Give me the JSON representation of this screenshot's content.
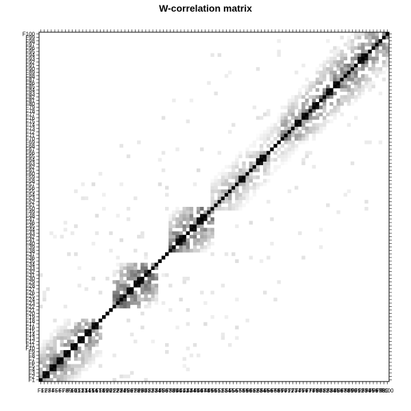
{
  "chart_data": {
    "type": "heatmap",
    "title": "W-correlation matrix",
    "xlabel": "",
    "ylabel": "",
    "n": 100,
    "x_tick_labels": [
      "F1",
      "F2",
      "F3",
      "F4",
      "F5",
      "F6",
      "F7",
      "F8",
      "F9",
      "F10",
      "F11",
      "F12",
      "F13",
      "F14",
      "F15",
      "F16",
      "F17",
      "F18",
      "F19",
      "F20",
      "F21",
      "F22",
      "F23",
      "F24",
      "F25",
      "F26",
      "F27",
      "F28",
      "F29",
      "F30",
      "F31",
      "F32",
      "F33",
      "F34",
      "F35",
      "F36",
      "F37",
      "F38",
      "F39",
      "F40",
      "F41",
      "F42",
      "F43",
      "F44",
      "F45",
      "F46",
      "F47",
      "F48",
      "F49",
      "F50",
      "F51",
      "F52",
      "F53",
      "F54",
      "F55",
      "F56",
      "F57",
      "F58",
      "F59",
      "F60",
      "F61",
      "F62",
      "F63",
      "F64",
      "F65",
      "F66",
      "F67",
      "F68",
      "F69",
      "F70",
      "F71",
      "F72",
      "F73",
      "F74",
      "F75",
      "F76",
      "F77",
      "F78",
      "F79",
      "F80",
      "F81",
      "F82",
      "F83",
      "F84",
      "F85",
      "F86",
      "F87",
      "F88",
      "F89",
      "F90",
      "F91",
      "F92",
      "F93",
      "F94",
      "F95",
      "F96",
      "F97",
      "F98",
      "F99",
      "F100"
    ],
    "y_tick_labels": [
      "F1",
      "F2",
      "F3",
      "F4",
      "F5",
      "F6",
      "F7",
      "F8",
      "F9",
      "F10",
      "F11",
      "F12",
      "F13",
      "F14",
      "F15",
      "F16",
      "F17",
      "F18",
      "F19",
      "F20",
      "F21",
      "F22",
      "F23",
      "F24",
      "F25",
      "F26",
      "F27",
      "F28",
      "F29",
      "F30",
      "F31",
      "F32",
      "F33",
      "F34",
      "F35",
      "F36",
      "F37",
      "F38",
      "F39",
      "F40",
      "F41",
      "F42",
      "F43",
      "F44",
      "F45",
      "F46",
      "F47",
      "F48",
      "F49",
      "F50",
      "F51",
      "F52",
      "F53",
      "F54",
      "F55",
      "F56",
      "F57",
      "F58",
      "F59",
      "F60",
      "F61",
      "F62",
      "F63",
      "F64",
      "F65",
      "F66",
      "F67",
      "F68",
      "F69",
      "F70",
      "F71",
      "F72",
      "F73",
      "F74",
      "F75",
      "F76",
      "F77",
      "F78",
      "F79",
      "F80",
      "F81",
      "F82",
      "F83",
      "F84",
      "F85",
      "F86",
      "F87",
      "F88",
      "F89",
      "F90",
      "F91",
      "F92",
      "F93",
      "F94",
      "F95",
      "F96",
      "F97",
      "F98",
      "F99",
      "F100"
    ],
    "value_range": [
      0,
      1
    ],
    "color_scale": {
      "low": "#ffffff",
      "high": "#000000"
    },
    "diagonal_value": 1,
    "blocks": [
      {
        "from": 1,
        "to": 18,
        "peak": 0.55,
        "decay": 0.05
      },
      {
        "from": 22,
        "to": 34,
        "peak": 0.7,
        "decay": 0.06
      },
      {
        "from": 38,
        "to": 50,
        "peak": 0.65,
        "decay": 0.06
      },
      {
        "from": 50,
        "to": 66,
        "peak": 0.35,
        "decay": 0.04
      },
      {
        "from": 60,
        "to": 80,
        "peak": 0.25,
        "decay": 0.03
      },
      {
        "from": 70,
        "to": 86,
        "peak": 0.5,
        "decay": 0.05
      },
      {
        "from": 80,
        "to": 100,
        "peak": 0.55,
        "decay": 0.05
      }
    ],
    "strong_pairs": [
      [
        2,
        3
      ],
      [
        4,
        5
      ],
      [
        6,
        7
      ],
      [
        8,
        9
      ],
      [
        10,
        11
      ],
      [
        12,
        13
      ],
      [
        14,
        15
      ],
      [
        16,
        17
      ],
      [
        26,
        27
      ],
      [
        28,
        29
      ],
      [
        29,
        30
      ],
      [
        40,
        41
      ],
      [
        41,
        42
      ],
      [
        44,
        45
      ],
      [
        46,
        47
      ],
      [
        47,
        48
      ],
      [
        58,
        59
      ],
      [
        63,
        64
      ],
      [
        64,
        65
      ],
      [
        74,
        75
      ],
      [
        76,
        77
      ],
      [
        79,
        80
      ],
      [
        83,
        84
      ],
      [
        85,
        86
      ],
      [
        92,
        93
      ],
      [
        93,
        94
      ]
    ],
    "grid": false,
    "legend": "none"
  }
}
